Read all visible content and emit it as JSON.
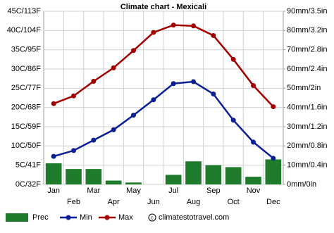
{
  "chart_data": {
    "type": "combo",
    "title": "Climate chart - Mexicali",
    "categories": [
      "Jan",
      "Feb",
      "Mar",
      "Apr",
      "May",
      "Jun",
      "Jul",
      "Aug",
      "Sep",
      "Oct",
      "Nov",
      "Dec"
    ],
    "series": [
      {
        "name": "Prec",
        "type": "bar",
        "axis": "y2",
        "color": "#1e7b2c",
        "values": [
          11,
          8,
          8,
          2,
          1,
          0,
          5,
          12,
          10,
          9,
          4,
          13
        ]
      },
      {
        "name": "Min",
        "type": "line",
        "color": "#0b1f96",
        "values": [
          7.3,
          8.8,
          11.5,
          14.2,
          18,
          22,
          26.2,
          26.7,
          23.5,
          16.7,
          11,
          6.8
        ]
      },
      {
        "name": "Max",
        "type": "line",
        "color": "#a30000",
        "values": [
          21,
          23,
          26.8,
          30.3,
          34.8,
          39.5,
          41.4,
          41.2,
          38.7,
          32.5,
          25.7,
          20.2
        ]
      }
    ],
    "ylim": [
      0,
      45
    ],
    "yticks": [
      {
        "value": 0,
        "label": "0C/32F"
      },
      {
        "value": 5,
        "label": "5C/41F"
      },
      {
        "value": 10,
        "label": "10C/50F"
      },
      {
        "value": 15,
        "label": "15C/59F"
      },
      {
        "value": 20,
        "label": "20C/68F"
      },
      {
        "value": 25,
        "label": "25C/77F"
      },
      {
        "value": 30,
        "label": "30C/86F"
      },
      {
        "value": 35,
        "label": "35C/95F"
      },
      {
        "value": 40,
        "label": "40C/104F"
      },
      {
        "value": 45,
        "label": "45C/113F"
      }
    ],
    "y2lim": [
      0,
      90
    ],
    "y2ticks": [
      {
        "value": 0,
        "label": "0mm/0in"
      },
      {
        "value": 10,
        "label": "10mm/0.4in"
      },
      {
        "value": 20,
        "label": "20mm/0.8in"
      },
      {
        "value": 30,
        "label": "30mm/1.2in"
      },
      {
        "value": 40,
        "label": "40mm/1.6in"
      },
      {
        "value": 50,
        "label": "50mm/2in"
      },
      {
        "value": 60,
        "label": "60mm/2.4in"
      },
      {
        "value": 70,
        "label": "70mm/2.8in"
      },
      {
        "value": 80,
        "label": "80mm/3.2in"
      },
      {
        "value": 90,
        "label": "90mm/3.5in"
      }
    ],
    "y2_color": "#1e9b2c",
    "grid": true,
    "source": "climatestotravel.com"
  }
}
